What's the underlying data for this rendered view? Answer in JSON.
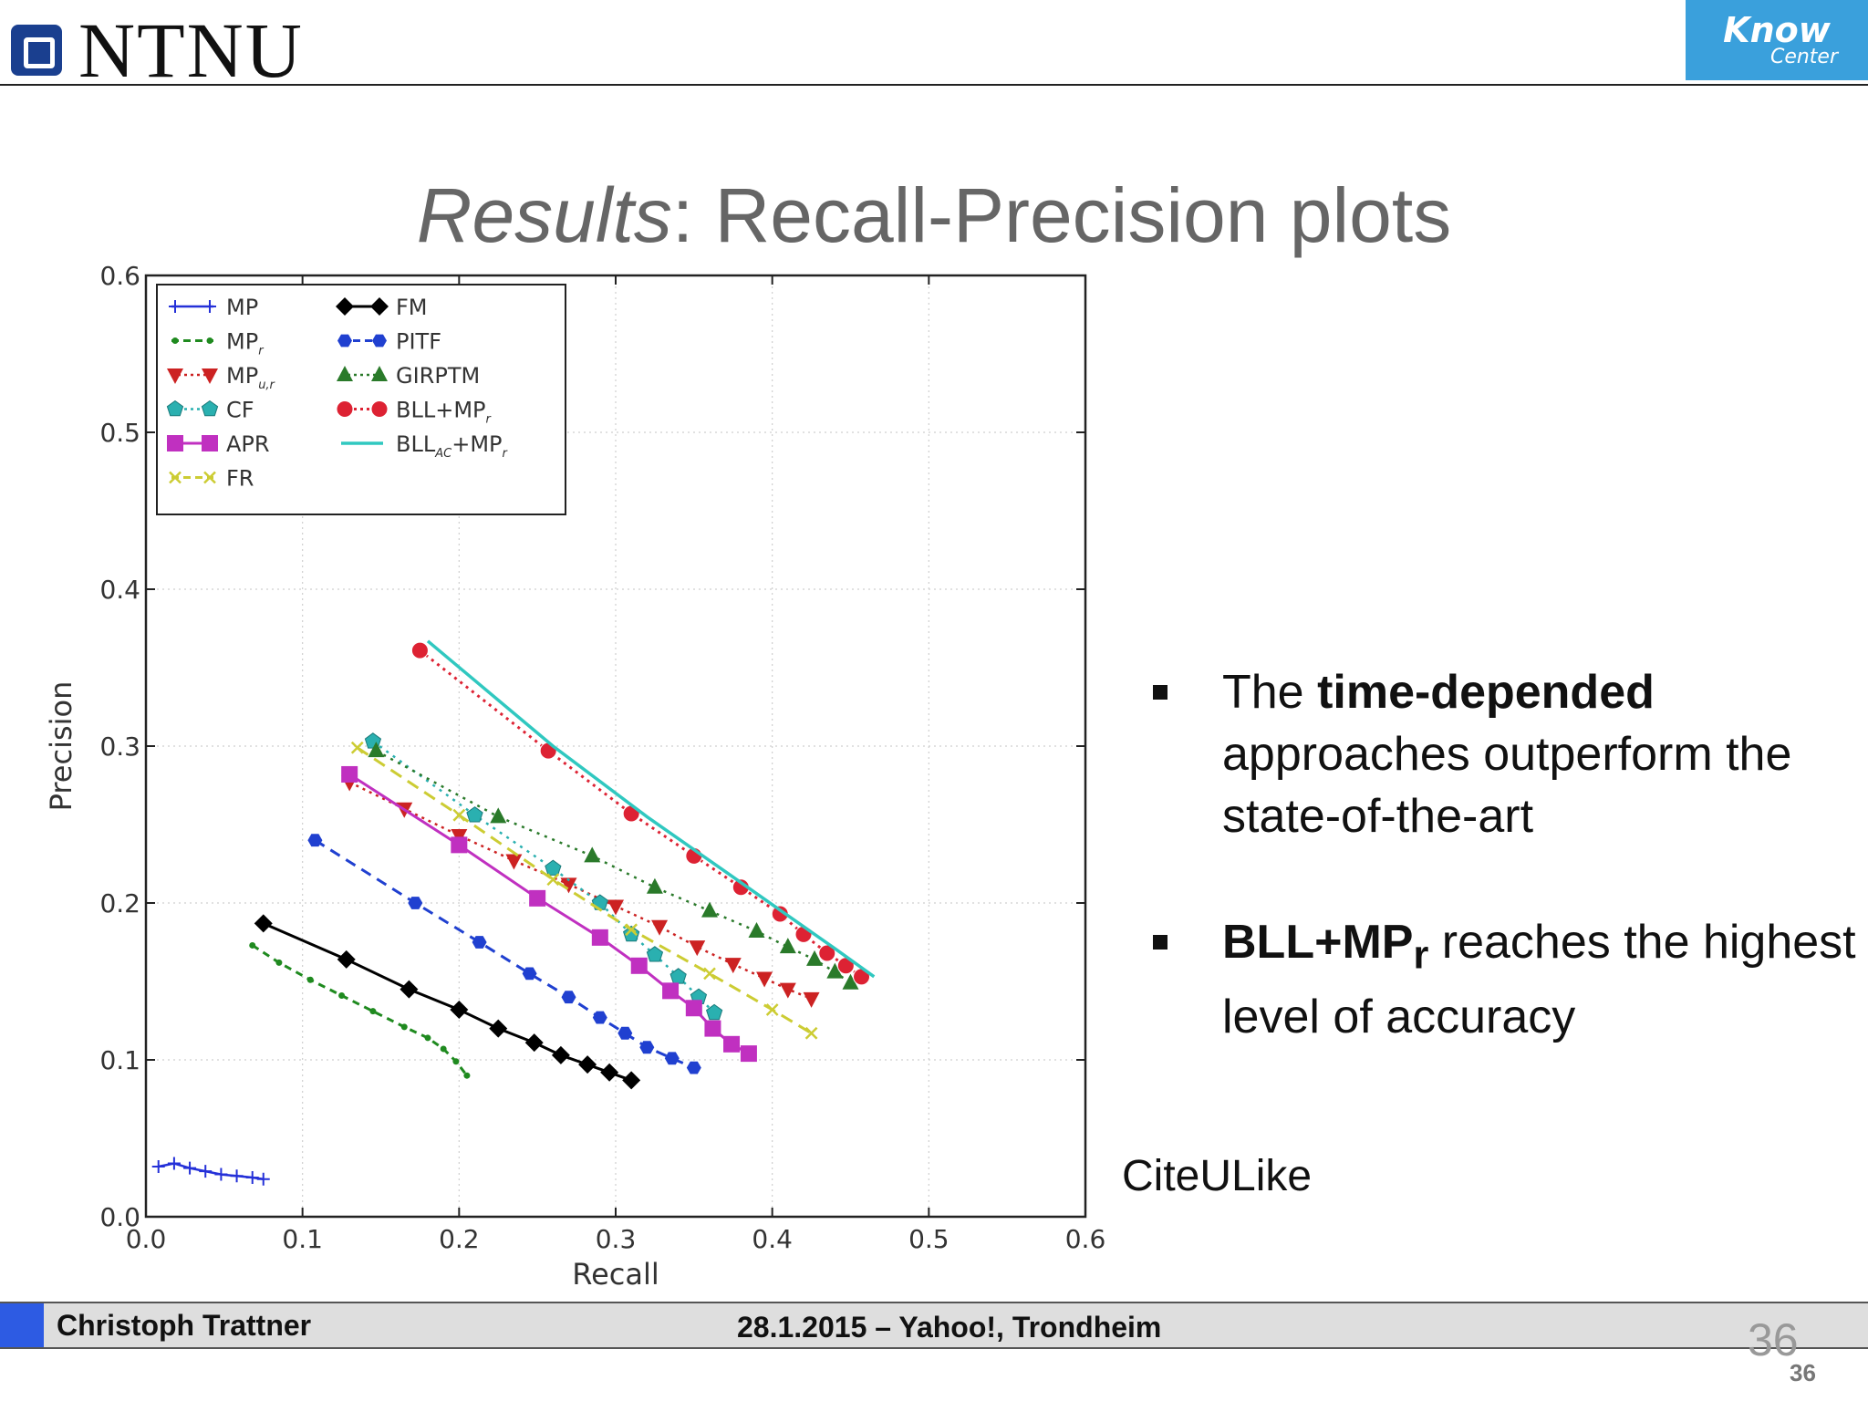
{
  "header": {
    "logo_text": "NTNU",
    "partner_logo_line1": "Know",
    "partner_logo_line2": "Center"
  },
  "slide": {
    "title_italic": "Results",
    "title_rest": ": Recall-Precision plots",
    "bullets": [
      {
        "pre": "The ",
        "bold": "time-depended",
        "post": " approaches outperform the state-of-the-art"
      },
      {
        "bold": "BLL+MP",
        "sub": "r",
        "post": " reaches the highest level of accuracy"
      }
    ],
    "dataset_label": "CiteULike"
  },
  "footer": {
    "author": "Christoph Trattner",
    "event": "28.1.2015 – Yahoo!, Trondheim",
    "page_large": "36",
    "page_small": "36"
  },
  "chart_data": {
    "type": "line",
    "xlabel": "Recall",
    "ylabel": "Precision",
    "xlim": [
      0,
      0.6
    ],
    "ylim": [
      0,
      0.6
    ],
    "xticks": [
      0.0,
      0.1,
      0.2,
      0.3,
      0.4,
      0.5,
      0.6
    ],
    "yticks": [
      0.0,
      0.1,
      0.2,
      0.3,
      0.4,
      0.5,
      0.6
    ],
    "grid": true,
    "legend_position": "top-left",
    "series": [
      {
        "name": "MP",
        "color": "#2430d8",
        "marker": "plus",
        "dash": "solid",
        "width": 2.5,
        "x": [
          0.008,
          0.018,
          0.028,
          0.038,
          0.048,
          0.058,
          0.068,
          0.075
        ],
        "y": [
          0.032,
          0.034,
          0.031,
          0.029,
          0.027,
          0.026,
          0.025,
          0.024
        ]
      },
      {
        "name": "MPr",
        "color": "#1f8a1f",
        "marker": "dot-small",
        "dash": "8,6",
        "width": 3,
        "x": [
          0.068,
          0.085,
          0.105,
          0.125,
          0.145,
          0.165,
          0.18,
          0.19,
          0.198,
          0.205
        ],
        "y": [
          0.173,
          0.162,
          0.151,
          0.141,
          0.131,
          0.121,
          0.114,
          0.107,
          0.099,
          0.09
        ]
      },
      {
        "name": "MPu,r",
        "color": "#cc2222",
        "marker": "triangle-down",
        "dash": "3,5",
        "width": 2.5,
        "x": [
          0.13,
          0.165,
          0.2,
          0.235,
          0.27,
          0.3,
          0.328,
          0.352,
          0.375,
          0.395,
          0.41,
          0.425
        ],
        "y": [
          0.277,
          0.26,
          0.243,
          0.227,
          0.212,
          0.198,
          0.185,
          0.172,
          0.161,
          0.152,
          0.145,
          0.139
        ]
      },
      {
        "name": "CF",
        "color": "#2ab0b0",
        "marker": "pentagon",
        "dash": "3,6",
        "width": 2.5,
        "x": [
          0.145,
          0.21,
          0.26,
          0.29,
          0.31,
          0.325,
          0.34,
          0.353,
          0.363
        ],
        "y": [
          0.303,
          0.256,
          0.222,
          0.2,
          0.18,
          0.167,
          0.153,
          0.14,
          0.13
        ]
      },
      {
        "name": "APR",
        "color": "#c030c0",
        "marker": "square",
        "dash": "solid",
        "width": 3,
        "x": [
          0.13,
          0.2,
          0.25,
          0.29,
          0.315,
          0.335,
          0.35,
          0.362,
          0.374,
          0.385
        ],
        "y": [
          0.282,
          0.237,
          0.203,
          0.178,
          0.16,
          0.144,
          0.133,
          0.12,
          0.11,
          0.104
        ]
      },
      {
        "name": "FR",
        "color": "#cccc33",
        "marker": "x",
        "dash": "14,8",
        "width": 3,
        "x": [
          0.135,
          0.2,
          0.26,
          0.31,
          0.36,
          0.4,
          0.425
        ],
        "y": [
          0.299,
          0.256,
          0.215,
          0.183,
          0.155,
          0.132,
          0.117
        ]
      },
      {
        "name": "FM",
        "color": "#000000",
        "marker": "diamond",
        "dash": "solid",
        "width": 3,
        "x": [
          0.075,
          0.128,
          0.168,
          0.2,
          0.225,
          0.248,
          0.265,
          0.282,
          0.296,
          0.31
        ],
        "y": [
          0.187,
          0.164,
          0.145,
          0.132,
          0.12,
          0.111,
          0.103,
          0.097,
          0.092,
          0.087
        ]
      },
      {
        "name": "PITF",
        "color": "#2040d0",
        "marker": "hexagon",
        "dash": "12,8",
        "width": 3,
        "x": [
          0.108,
          0.172,
          0.213,
          0.245,
          0.27,
          0.29,
          0.306,
          0.32,
          0.336,
          0.35
        ],
        "y": [
          0.24,
          0.2,
          0.175,
          0.155,
          0.14,
          0.127,
          0.117,
          0.108,
          0.101,
          0.095
        ]
      },
      {
        "name": "GIRPTM",
        "color": "#2a7a2a",
        "marker": "triangle-up",
        "dash": "3,6",
        "width": 2.5,
        "x": [
          0.147,
          0.225,
          0.285,
          0.325,
          0.36,
          0.39,
          0.41,
          0.427,
          0.44,
          0.45
        ],
        "y": [
          0.297,
          0.255,
          0.23,
          0.21,
          0.195,
          0.182,
          0.172,
          0.164,
          0.156,
          0.149
        ]
      },
      {
        "name": "BLL+MPr",
        "color": "#dd2233",
        "marker": "circle",
        "dash": "3,5",
        "width": 3,
        "x": [
          0.175,
          0.257,
          0.31,
          0.35,
          0.38,
          0.405,
          0.42,
          0.435,
          0.447,
          0.457
        ],
        "y": [
          0.361,
          0.297,
          0.257,
          0.23,
          0.21,
          0.193,
          0.18,
          0.168,
          0.16,
          0.153
        ]
      },
      {
        "name": "BLLAC+MPr",
        "color": "#30c8c0",
        "marker": "none",
        "dash": "solid",
        "width": 3.5,
        "x": [
          0.18,
          0.26,
          0.32,
          0.37,
          0.41,
          0.44,
          0.465
        ],
        "y": [
          0.367,
          0.3,
          0.255,
          0.22,
          0.192,
          0.171,
          0.153
        ]
      }
    ]
  }
}
